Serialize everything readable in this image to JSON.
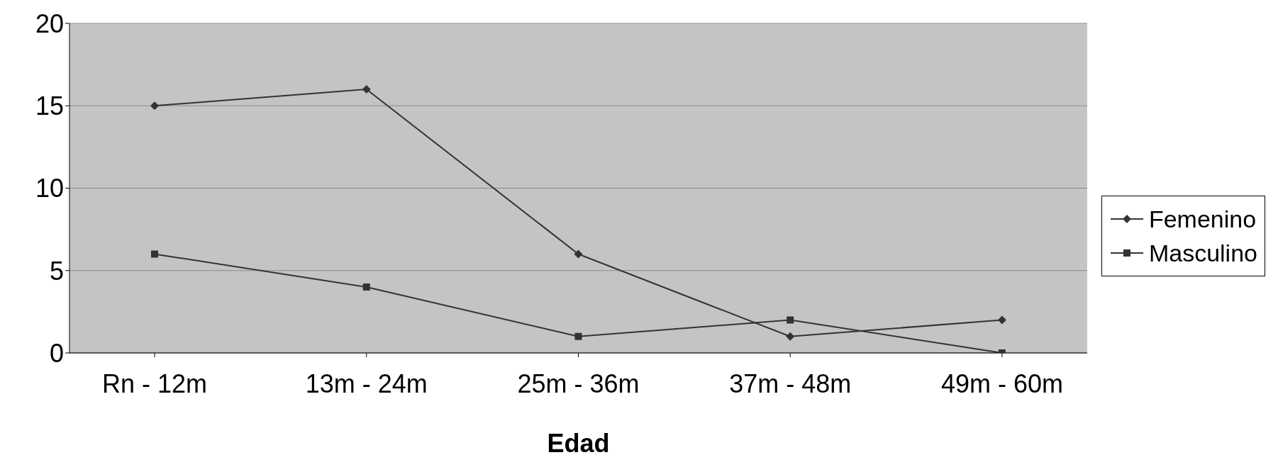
{
  "chart_data": {
    "type": "line",
    "xlabel": "Edad",
    "categories": [
      "Rn - 12m",
      "13m - 24m",
      "25m - 36m",
      "37m - 48m",
      "49m - 60m"
    ],
    "series": [
      {
        "name": "Femenino",
        "color": "#333333",
        "marker": "diamond",
        "values": [
          15,
          16,
          6,
          1,
          2
        ]
      },
      {
        "name": "Masculino",
        "color": "#333333",
        "marker": "square",
        "values": [
          6,
          4,
          1,
          2,
          0
        ]
      }
    ],
    "ylim": [
      0,
      20
    ],
    "yticks": [
      0,
      5,
      10,
      15,
      20
    ],
    "grid": "y",
    "legend": "right",
    "line_style": "solid"
  }
}
